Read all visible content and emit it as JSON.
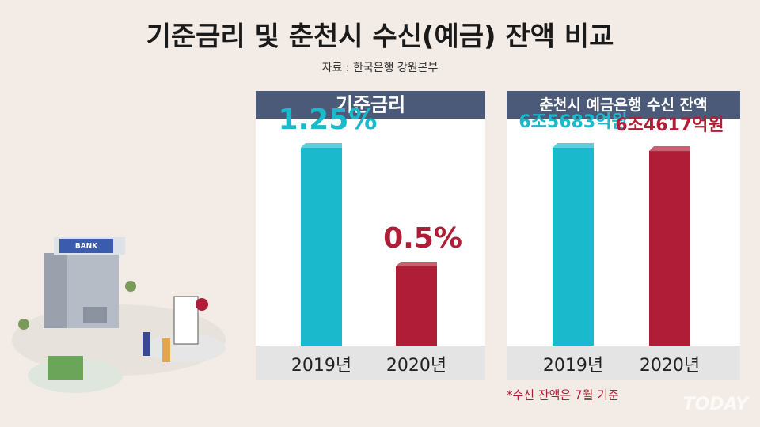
{
  "header": {
    "title": "기준금리 및 춘천시 수신(예금) 잔액 비교",
    "source": "자료 : 한국은행 강원본부",
    "note": "*수신 잔액은 7월 기준",
    "watermark": "TODAY",
    "illustration_label": "BANK"
  },
  "chart_data": [
    {
      "type": "bar",
      "title": "기준금리",
      "categories": [
        "2019년",
        "2020년"
      ],
      "values": [
        1.25,
        0.5
      ],
      "value_labels": [
        "1.25%",
        "0.5%"
      ],
      "colors": [
        "#1bb9cc",
        "#b01d36"
      ]
    },
    {
      "type": "bar",
      "title": "춘천시 예금은행 수신 잔액",
      "categories": [
        "2019년",
        "2020년"
      ],
      "values": [
        6568300000000,
        6461700000000
      ],
      "value_labels": [
        "6조5683억원",
        "6조4617억원"
      ],
      "colors": [
        "#1bb9cc",
        "#b01d36"
      ]
    }
  ]
}
